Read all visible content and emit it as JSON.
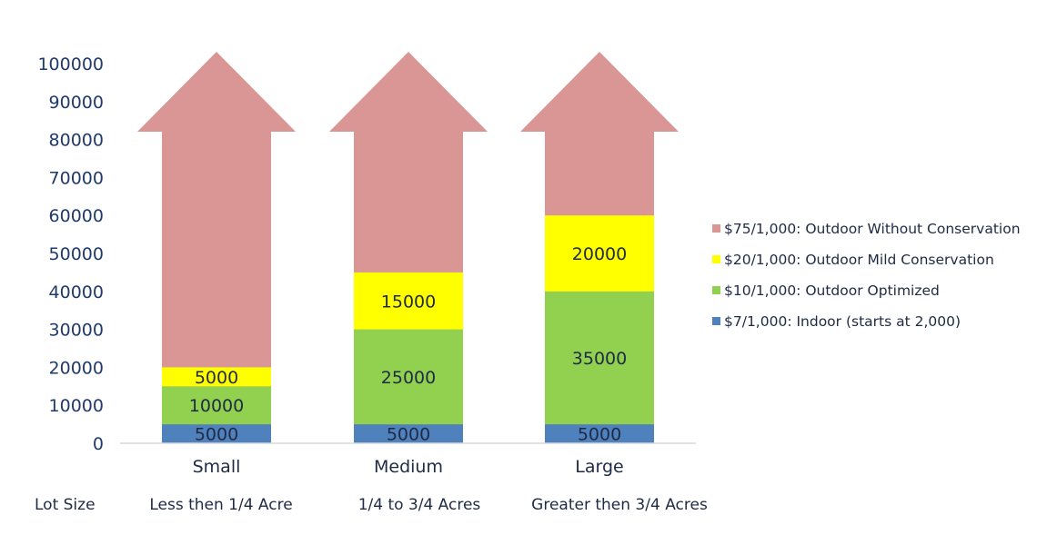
{
  "chart_data": {
    "type": "bar",
    "stacked": true,
    "categories": [
      "Small",
      "Medium",
      "Large"
    ],
    "series": [
      {
        "name": "$7/1,000: Indoor (starts at 2,000)",
        "values": [
          5000,
          5000,
          5000
        ],
        "color": "#4f81bd"
      },
      {
        "name": "$10/1,000: Outdoor Optimized",
        "values": [
          10000,
          25000,
          35000
        ],
        "color": "#92d050"
      },
      {
        "name": "$20/1,000: Outdoor Mild Conservation",
        "values": [
          5000,
          15000,
          20000
        ],
        "color": "#ffff00"
      },
      {
        "name": "$75/1,000: Outdoor Without Conservation",
        "values": [
          null,
          null,
          null
        ],
        "color": "#d99694",
        "shape": "arrow-upward-unbounded"
      }
    ],
    "ylim": [
      0,
      100000
    ],
    "yticks": [
      0,
      10000,
      20000,
      30000,
      40000,
      50000,
      60000,
      70000,
      80000,
      90000,
      100000
    ],
    "ytick_labels": [
      "0",
      "10000",
      "20000",
      "30000",
      "40000",
      "50000",
      "60000",
      "70000",
      "80000",
      "90000",
      "100000"
    ],
    "legend_order": [
      "$75/1,000: Outdoor Without Conservation",
      "$20/1,000: Outdoor Mild Conservation",
      "$10/1,000: Outdoor Optimized",
      "$7/1,000: Indoor (starts at 2,000)"
    ],
    "legend_position": "right",
    "grid": false,
    "title": "",
    "xlabel": "",
    "ylabel": "",
    "row_header": "Lot Size",
    "category_descriptions": [
      "Less then 1/4 Acre",
      "1/4 to 3/4 Acres",
      "Greater then 3/4  Acres"
    ]
  }
}
